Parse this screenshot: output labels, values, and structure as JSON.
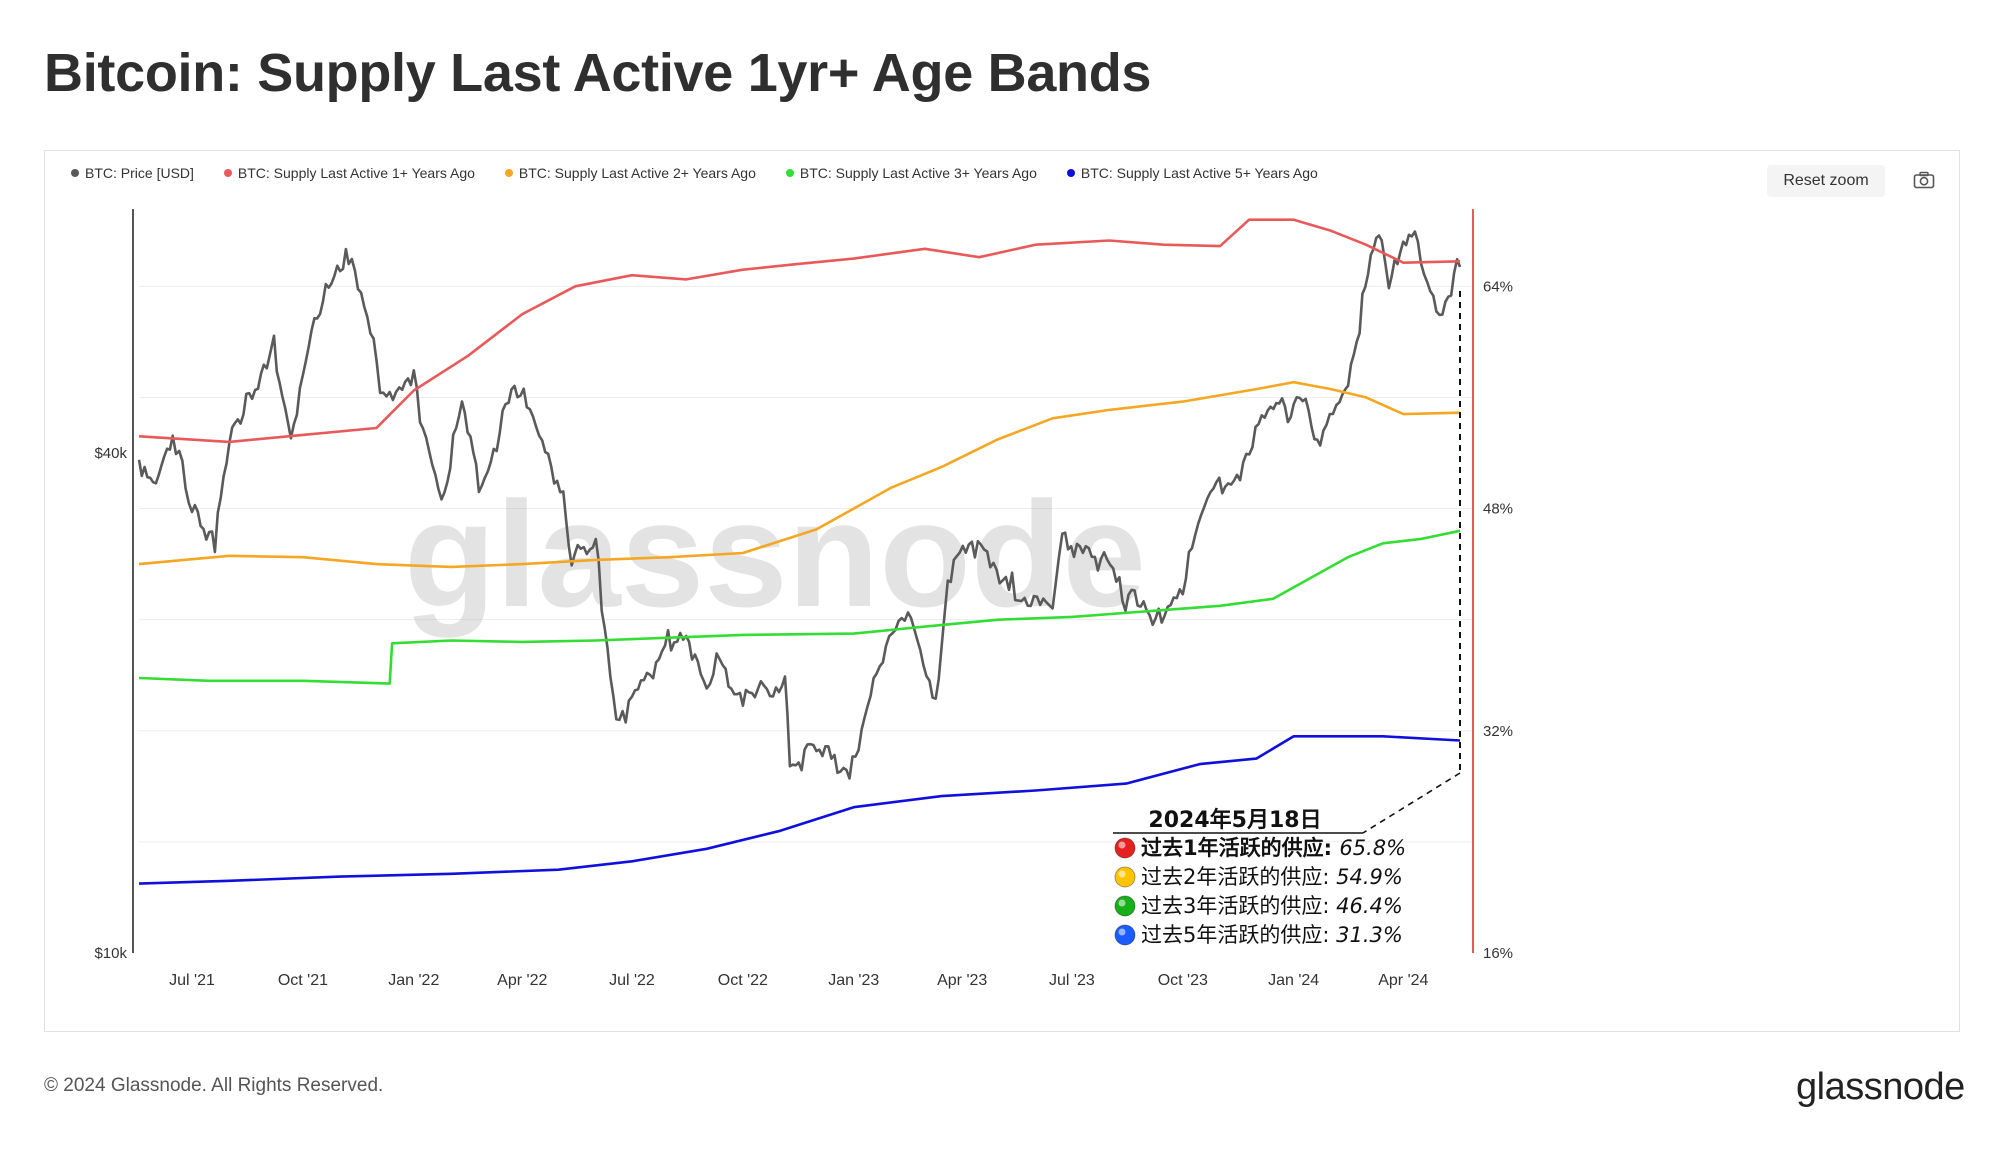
{
  "page": {
    "title": "Bitcoin: Supply Last Active 1yr+ Age Bands",
    "footer_copyright": "© 2024 Glassnode. All Rights Reserved.",
    "footer_logo": "glassnode",
    "watermark": "glassnode",
    "reset_zoom_label": "Reset zoom",
    "camera_icon": "camera-icon"
  },
  "annotation": {
    "date": "2024年5月18日",
    "rows": [
      {
        "label": "过去1年活跃的供应",
        "value": "65.8%",
        "color": "#e52020",
        "bold": true
      },
      {
        "label": "过去2年活跃的供应",
        "value": "54.9%",
        "color": "#ffc400",
        "bold": false
      },
      {
        "label": "过去3年活跃的供应",
        "value": "46.4%",
        "color": "#18b018",
        "bold": false
      },
      {
        "label": "过去5年活跃的供应",
        "value": "31.3%",
        "color": "#1a5cff",
        "bold": false
      }
    ]
  },
  "chart_data": {
    "type": "line",
    "title": "Bitcoin: Supply Last Active 1yr+ Age Bands",
    "x_ticks": [
      "Jul '21",
      "Oct '21",
      "Jan '22",
      "Apr '22",
      "Jul '22",
      "Oct '22",
      "Jan '23",
      "Apr '23",
      "Jul '23",
      "Oct '23",
      "Jan '24",
      "Apr '24"
    ],
    "x_tick_dates": [
      "2021-07-01",
      "2021-10-01",
      "2022-01-01",
      "2022-04-01",
      "2022-07-01",
      "2022-10-01",
      "2023-01-01",
      "2023-04-01",
      "2023-07-01",
      "2023-10-01",
      "2024-01-01",
      "2024-04-01"
    ],
    "x_range": [
      "2021-05-18",
      "2024-05-18"
    ],
    "left_axis": {
      "scale": "log",
      "range": [
        10000,
        80000
      ],
      "ticks": [
        10000,
        40000
      ],
      "tick_labels": [
        "$10k",
        "$40k"
      ]
    },
    "right_axis": {
      "scale": "linear",
      "range": [
        16,
        70
      ],
      "ticks": [
        16,
        32,
        48,
        64
      ],
      "tick_labels": [
        "16%",
        "32%",
        "48%",
        "64%"
      ]
    },
    "legend_position": "top-left",
    "grid": true,
    "series": [
      {
        "name": "BTC: Price [USD]",
        "axis": "left",
        "color": "#5a5a5a",
        "points": [
          [
            "2021-05-18",
            38500
          ],
          [
            "2021-06-01",
            36500
          ],
          [
            "2021-06-15",
            40000
          ],
          [
            "2021-07-01",
            34500
          ],
          [
            "2021-07-20",
            30500
          ],
          [
            "2021-08-01",
            40000
          ],
          [
            "2021-08-15",
            46500
          ],
          [
            "2021-09-01",
            49000
          ],
          [
            "2021-09-07",
            52500
          ],
          [
            "2021-09-21",
            42000
          ],
          [
            "2021-10-01",
            48000
          ],
          [
            "2021-10-20",
            64000
          ],
          [
            "2021-11-08",
            68000
          ],
          [
            "2021-11-26",
            54000
          ],
          [
            "2021-12-04",
            48000
          ],
          [
            "2021-12-20",
            46000
          ],
          [
            "2022-01-01",
            47500
          ],
          [
            "2022-01-24",
            35000
          ],
          [
            "2022-02-10",
            44000
          ],
          [
            "2022-02-24",
            36000
          ],
          [
            "2022-03-28",
            47500
          ],
          [
            "2022-04-15",
            40000
          ],
          [
            "2022-05-05",
            36000
          ],
          [
            "2022-05-12",
            29000
          ],
          [
            "2022-06-01",
            30000
          ],
          [
            "2022-06-18",
            19000
          ],
          [
            "2022-07-01",
            19500
          ],
          [
            "2022-07-31",
            23500
          ],
          [
            "2022-08-15",
            24000
          ],
          [
            "2022-09-01",
            20000
          ],
          [
            "2022-09-12",
            22500
          ],
          [
            "2022-10-01",
            19500
          ],
          [
            "2022-11-05",
            21000
          ],
          [
            "2022-11-09",
            16500
          ],
          [
            "2022-12-01",
            17000
          ],
          [
            "2022-12-31",
            16500
          ],
          [
            "2023-01-20",
            22000
          ],
          [
            "2023-02-15",
            24500
          ],
          [
            "2023-03-10",
            20000
          ],
          [
            "2023-03-20",
            28000
          ],
          [
            "2023-04-14",
            30500
          ],
          [
            "2023-05-15",
            27000
          ],
          [
            "2023-06-15",
            25000
          ],
          [
            "2023-06-23",
            30500
          ],
          [
            "2023-07-15",
            30500
          ],
          [
            "2023-08-17",
            26000
          ],
          [
            "2023-09-11",
            25000
          ],
          [
            "2023-10-01",
            27500
          ],
          [
            "2023-10-24",
            34500
          ],
          [
            "2023-11-15",
            37000
          ],
          [
            "2023-12-08",
            44000
          ],
          [
            "2024-01-01",
            44500
          ],
          [
            "2024-01-11",
            46500
          ],
          [
            "2024-01-23",
            39500
          ],
          [
            "2024-02-08",
            45000
          ],
          [
            "2024-02-20",
            52000
          ],
          [
            "2024-03-05",
            67000
          ],
          [
            "2024-03-14",
            73000
          ],
          [
            "2024-03-20",
            63000
          ],
          [
            "2024-04-08",
            71500
          ],
          [
            "2024-05-01",
            58000
          ],
          [
            "2024-05-18",
            67000
          ]
        ]
      },
      {
        "name": "BTC: Supply Last Active 1+ Years Ago",
        "axis": "right",
        "color": "#e85a5a",
        "points": [
          [
            "2021-05-18",
            53.2
          ],
          [
            "2021-08-01",
            52.8
          ],
          [
            "2021-10-01",
            53.3
          ],
          [
            "2021-12-01",
            53.8
          ],
          [
            "2022-01-01",
            56.5
          ],
          [
            "2022-02-15",
            59.0
          ],
          [
            "2022-04-01",
            62.0
          ],
          [
            "2022-05-15",
            64.0
          ],
          [
            "2022-07-01",
            64.8
          ],
          [
            "2022-08-15",
            64.5
          ],
          [
            "2022-10-01",
            65.2
          ],
          [
            "2022-11-15",
            65.6
          ],
          [
            "2023-01-01",
            66.0
          ],
          [
            "2023-03-01",
            66.7
          ],
          [
            "2023-04-15",
            66.1
          ],
          [
            "2023-06-01",
            67.0
          ],
          [
            "2023-08-01",
            67.3
          ],
          [
            "2023-09-15",
            67.0
          ],
          [
            "2023-11-01",
            66.9
          ],
          [
            "2023-11-25",
            68.8
          ],
          [
            "2024-01-01",
            68.8
          ],
          [
            "2024-02-01",
            68.0
          ],
          [
            "2024-03-01",
            67.0
          ],
          [
            "2024-04-01",
            65.7
          ],
          [
            "2024-05-18",
            65.8
          ]
        ]
      },
      {
        "name": "BTC: Supply Last Active 2+ Years Ago",
        "axis": "right",
        "color": "#f5a623",
        "points": [
          [
            "2021-05-18",
            44.0
          ],
          [
            "2021-08-01",
            44.6
          ],
          [
            "2021-10-01",
            44.5
          ],
          [
            "2021-12-01",
            44.0
          ],
          [
            "2022-02-01",
            43.8
          ],
          [
            "2022-04-01",
            44.0
          ],
          [
            "2022-06-01",
            44.3
          ],
          [
            "2022-08-01",
            44.5
          ],
          [
            "2022-10-01",
            44.8
          ],
          [
            "2022-12-01",
            46.5
          ],
          [
            "2023-01-01",
            48.0
          ],
          [
            "2023-02-01",
            49.5
          ],
          [
            "2023-03-15",
            51.0
          ],
          [
            "2023-05-01",
            53.0
          ],
          [
            "2023-06-15",
            54.5
          ],
          [
            "2023-08-01",
            55.1
          ],
          [
            "2023-10-01",
            55.7
          ],
          [
            "2023-12-01",
            56.6
          ],
          [
            "2024-01-01",
            57.1
          ],
          [
            "2024-02-01",
            56.6
          ],
          [
            "2024-03-01",
            56.0
          ],
          [
            "2024-04-01",
            54.8
          ],
          [
            "2024-05-18",
            54.9
          ]
        ]
      },
      {
        "name": "BTC: Supply Last Active 3+ Years Ago",
        "axis": "right",
        "color": "#33dd33",
        "points": [
          [
            "2021-05-18",
            35.8
          ],
          [
            "2021-07-15",
            35.6
          ],
          [
            "2021-10-01",
            35.6
          ],
          [
            "2021-12-12",
            35.4
          ],
          [
            "2021-12-14",
            38.3
          ],
          [
            "2022-02-01",
            38.5
          ],
          [
            "2022-04-01",
            38.4
          ],
          [
            "2022-06-01",
            38.5
          ],
          [
            "2022-08-01",
            38.7
          ],
          [
            "2022-10-01",
            38.9
          ],
          [
            "2023-01-01",
            39.0
          ],
          [
            "2023-03-01",
            39.5
          ],
          [
            "2023-05-01",
            40.0
          ],
          [
            "2023-07-01",
            40.2
          ],
          [
            "2023-09-01",
            40.6
          ],
          [
            "2023-11-01",
            41.0
          ],
          [
            "2023-12-15",
            41.5
          ],
          [
            "2024-01-15",
            43.0
          ],
          [
            "2024-02-15",
            44.5
          ],
          [
            "2024-03-15",
            45.5
          ],
          [
            "2024-04-15",
            45.8
          ],
          [
            "2024-05-18",
            46.4
          ]
        ]
      },
      {
        "name": "BTC: Supply Last Active 5+ Years Ago",
        "axis": "right",
        "color": "#1010dd",
        "points": [
          [
            "2021-05-18",
            21.0
          ],
          [
            "2021-08-01",
            21.2
          ],
          [
            "2021-11-01",
            21.5
          ],
          [
            "2022-02-01",
            21.7
          ],
          [
            "2022-05-01",
            22.0
          ],
          [
            "2022-07-01",
            22.6
          ],
          [
            "2022-09-01",
            23.5
          ],
          [
            "2022-11-01",
            24.8
          ],
          [
            "2023-01-01",
            26.5
          ],
          [
            "2023-03-15",
            27.3
          ],
          [
            "2023-06-01",
            27.7
          ],
          [
            "2023-08-15",
            28.2
          ],
          [
            "2023-10-15",
            29.6
          ],
          [
            "2023-12-01",
            30.0
          ],
          [
            "2024-01-01",
            31.6
          ],
          [
            "2024-02-15",
            31.6
          ],
          [
            "2024-03-15",
            31.6
          ],
          [
            "2024-05-18",
            31.3
          ]
        ]
      }
    ]
  }
}
